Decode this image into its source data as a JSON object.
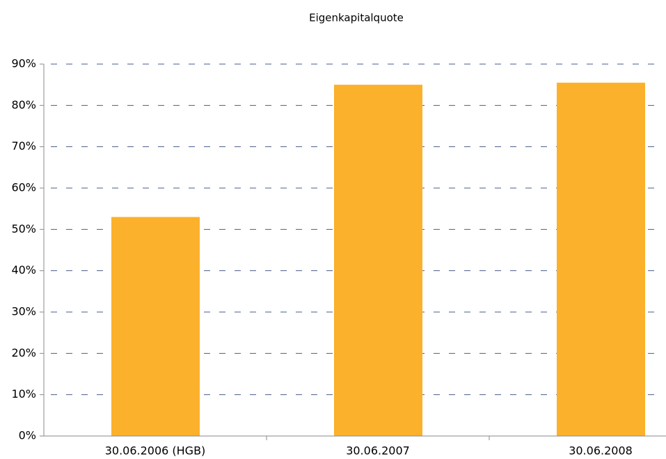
{
  "chart_data": {
    "type": "bar",
    "title": "Eigenkapitalquote",
    "categories": [
      "30.06.2006 (HGB)",
      "30.06.2007",
      "30.06.2008"
    ],
    "values": [
      53,
      85,
      85.5
    ],
    "color": "#fbb12b",
    "ylim": [
      0,
      90
    ],
    "yticks": [
      {
        "value": 0,
        "label": "0%"
      },
      {
        "value": 10,
        "label": "10%"
      },
      {
        "value": 20,
        "label": "20%"
      },
      {
        "value": 30,
        "label": "30%"
      },
      {
        "value": 40,
        "label": "40%"
      },
      {
        "value": 50,
        "label": "50%"
      },
      {
        "value": 60,
        "label": "60%"
      },
      {
        "value": 70,
        "label": "70%"
      },
      {
        "value": 80,
        "label": "80%"
      },
      {
        "value": 90,
        "label": "90%"
      }
    ],
    "grid": true
  }
}
